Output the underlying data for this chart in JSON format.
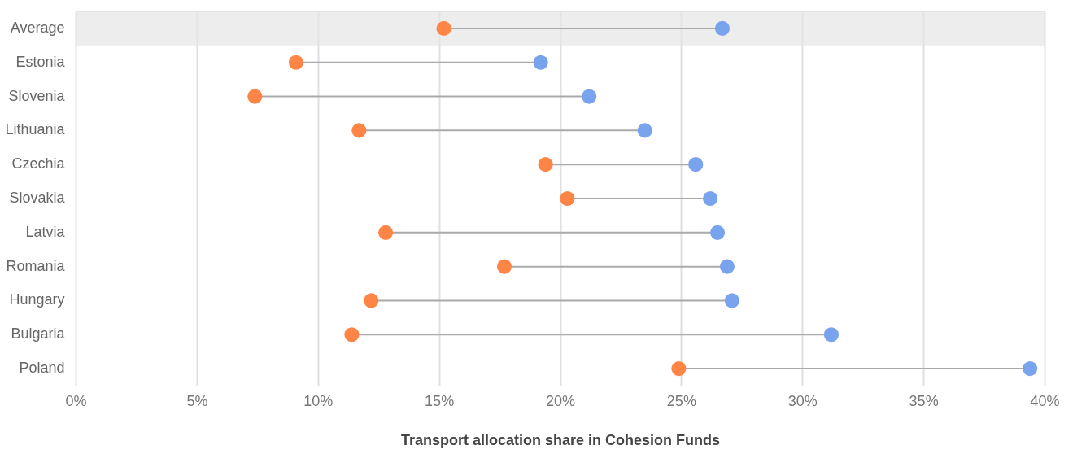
{
  "chart_data": {
    "type": "scatter",
    "orientation": "horizontal",
    "xlabel": "Transport allocation share in Cohesion Funds",
    "categories": [
      "Average",
      "Estonia",
      "Slovenia",
      "Lithuania",
      "Czechia",
      "Slovakia",
      "Latvia",
      "Romania",
      "Hungary",
      "Bulgaria",
      "Poland"
    ],
    "series": [
      {
        "color": "#ff8547",
        "values": [
          15.2,
          9.1,
          7.4,
          11.7,
          19.4,
          20.3,
          12.8,
          17.7,
          12.2,
          11.4,
          24.9
        ]
      },
      {
        "color": "#7aa3ee",
        "values": [
          26.7,
          19.2,
          21.2,
          23.5,
          25.6,
          26.2,
          26.5,
          26.9,
          27.1,
          31.2,
          39.4
        ]
      }
    ],
    "xlim": [
      0,
      40
    ],
    "xticks": [
      {
        "value": 0,
        "label": "0%"
      },
      {
        "value": 5,
        "label": "5%"
      },
      {
        "value": 10,
        "label": "10%"
      },
      {
        "value": 15,
        "label": "15%"
      },
      {
        "value": 20,
        "label": "20%"
      },
      {
        "value": 25,
        "label": "25%"
      },
      {
        "value": 30,
        "label": "30%"
      },
      {
        "value": 35,
        "label": "35%"
      },
      {
        "value": 40,
        "label": "40%"
      }
    ],
    "bands": [
      {
        "axis": "y",
        "from": "Average",
        "to": "Average",
        "color": "#e6e6e6"
      }
    ],
    "grid": "x",
    "marker": "circle"
  }
}
